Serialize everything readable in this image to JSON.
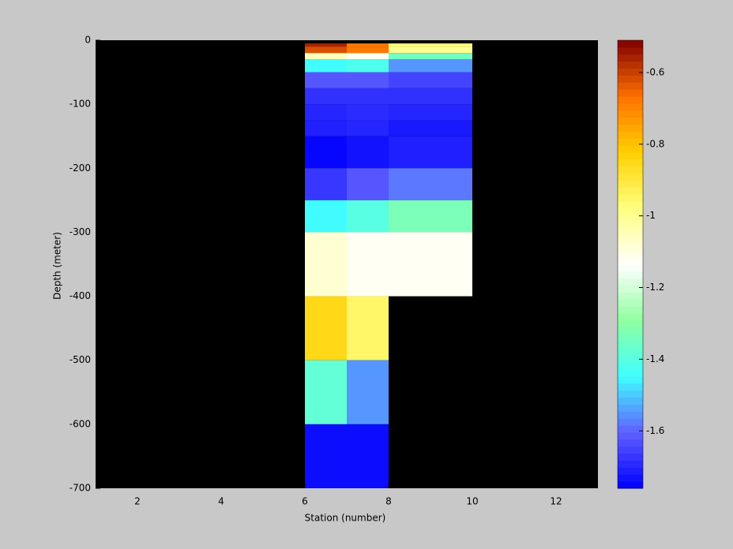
{
  "chart_data": {
    "type": "heatmap",
    "xlabel": "Station (number)",
    "ylabel": "Depth (meter)",
    "x_edges": [
      6,
      7,
      8,
      10
    ],
    "y_edges": [
      -5,
      -10,
      -20,
      -30,
      -50,
      -75,
      -100,
      -125,
      -150,
      -200,
      -250,
      -300,
      -400,
      -500,
      -600,
      -700
    ],
    "values": [
      [
        -0.56,
        -0.68,
        -0.97
      ],
      [
        -0.62,
        -0.68,
        -1.0
      ],
      [
        -1.05,
        -1.12,
        -1.35
      ],
      [
        -1.45,
        -1.42,
        -1.55
      ],
      [
        -1.62,
        -1.62,
        -1.65
      ],
      [
        -1.68,
        -1.68,
        -1.68
      ],
      [
        -1.7,
        -1.69,
        -1.7
      ],
      [
        -1.71,
        -1.7,
        -1.72
      ],
      [
        -1.75,
        -1.73,
        -1.71
      ],
      [
        -1.67,
        -1.62,
        -1.58
      ],
      [
        -1.45,
        -1.4,
        -1.33
      ],
      [
        -1.08,
        -1.12,
        -1.12
      ],
      [
        -0.85,
        -0.95,
        null
      ],
      [
        -1.38,
        -1.55,
        null
      ],
      [
        -1.74,
        -1.74,
        null
      ]
    ],
    "xlim": [
      1,
      13
    ],
    "ylim": [
      -700,
      0
    ],
    "xticks": [
      2,
      4,
      6,
      8,
      10,
      12
    ],
    "yticks": [
      0,
      -100,
      -200,
      -300,
      -400,
      -500,
      -600,
      -700
    ],
    "clim": [
      -1.76,
      -0.51
    ],
    "cticks": [
      -0.6,
      -0.8,
      -1,
      -1.2,
      -1.4,
      -1.6
    ],
    "colormap": [
      "#0000ff",
      "#6060ff",
      "#40ffff",
      "#90ffa0",
      "#ffffff",
      "#ffff80",
      "#ffd000",
      "#ff7000",
      "#800000"
    ],
    "background": "#000000"
  }
}
